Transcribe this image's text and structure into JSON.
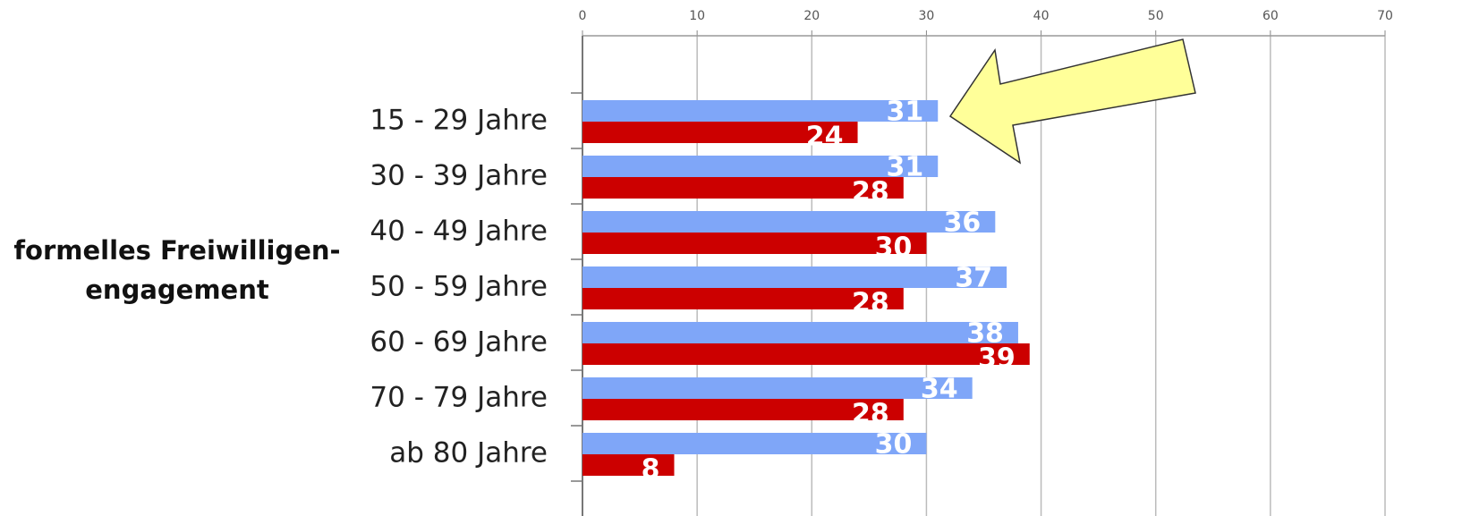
{
  "chart_data": {
    "type": "bar",
    "orientation": "horizontal",
    "annotation": [
      "formelles Freiwilligen-",
      "engagement"
    ],
    "categories": [
      null,
      "15 - 29 Jahre",
      "30 - 39 Jahre",
      "40 - 49 Jahre",
      "50 - 59 Jahre",
      "60 - 69 Jahre",
      "70 - 79 Jahre",
      "ab 80 Jahre"
    ],
    "series": [
      {
        "color": "#7fa6f8",
        "values": [
          null,
          31,
          31,
          36,
          37,
          38,
          34,
          30
        ]
      },
      {
        "color": "#cc0000",
        "values": [
          null,
          24,
          28,
          30,
          28,
          39,
          28,
          8
        ]
      }
    ],
    "xlim": [
      0,
      70
    ],
    "xticks": [
      0,
      10,
      20,
      30,
      40,
      50,
      60,
      70
    ],
    "grid": true
  }
}
